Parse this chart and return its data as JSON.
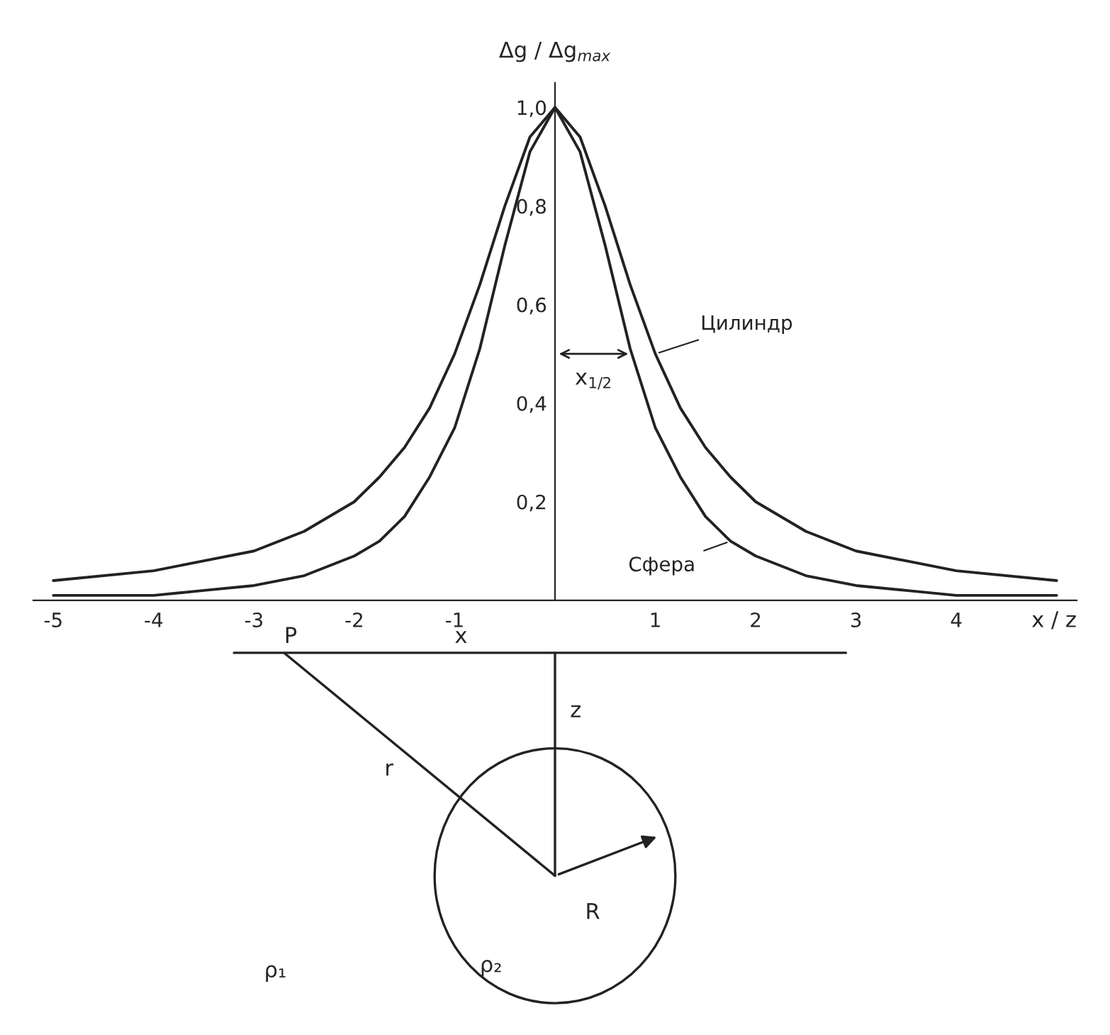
{
  "chart_data": {
    "type": "line",
    "x": [
      -5,
      -4,
      -3.5,
      -3,
      -2.5,
      -2,
      -1.75,
      -1.5,
      -1.25,
      -1,
      -0.75,
      -0.5,
      -0.25,
      0,
      0.25,
      0.5,
      0.75,
      1,
      1.25,
      1.5,
      1.75,
      2,
      2.5,
      3,
      3.5,
      4,
      5
    ],
    "series": [
      {
        "name": "Цилиндр",
        "color": "#222222",
        "values": [
          0.04,
          0.06,
          0.08,
          0.1,
          0.14,
          0.2,
          0.25,
          0.31,
          0.39,
          0.5,
          0.64,
          0.8,
          0.94,
          1.0,
          0.94,
          0.8,
          0.64,
          0.5,
          0.39,
          0.31,
          0.25,
          0.2,
          0.14,
          0.1,
          0.08,
          0.06,
          0.04
        ]
      },
      {
        "name": "Сфера",
        "color": "#222222",
        "values": [
          0.01,
          0.01,
          0.02,
          0.03,
          0.05,
          0.09,
          0.12,
          0.17,
          0.25,
          0.35,
          0.51,
          0.72,
          0.91,
          1.0,
          0.91,
          0.72,
          0.51,
          0.35,
          0.25,
          0.17,
          0.12,
          0.09,
          0.05,
          0.03,
          0.02,
          0.01,
          0.01
        ]
      }
    ],
    "xlim": [
      -5.2,
      5.2
    ],
    "ylim": [
      0,
      1.05
    ],
    "xticks": [
      -5,
      -4,
      -3,
      -2,
      -1,
      1,
      2,
      3,
      4
    ],
    "yticks": [
      {
        "value": 0.2,
        "label": "0,2"
      },
      {
        "value": 0.4,
        "label": "0,4"
      },
      {
        "value": 0.6,
        "label": "0,6"
      },
      {
        "value": 0.8,
        "label": "0,8"
      },
      {
        "value": 1.0,
        "label": "1,0"
      }
    ],
    "xlabel": "x / z",
    "ylabel": "Δg / Δg$_{max}$",
    "grid": false,
    "legend": false,
    "marker": "none",
    "line_style": "solid",
    "annotations": [
      {
        "text": "x$_{1/2}$",
        "x": 0.77,
        "y": 0.5
      },
      "P",
      "x",
      "z",
      "r",
      "R",
      "ρ₁",
      "ρ₂"
    ]
  }
}
